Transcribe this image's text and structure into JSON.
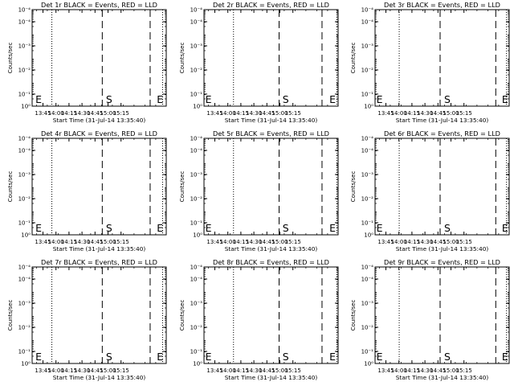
{
  "chart_data": [
    {
      "type": "line",
      "title": "Det 1r BLACK = Events, RED = LLD",
      "ylabel": "Counts/sec",
      "xlabel": "Start Time (31-Jul-14 13:35:40)",
      "y_scale": "log",
      "ylim_exp": [
        0,
        4
      ],
      "xlim_minutes": [
        0,
        100
      ],
      "x_tick_labels": [
        "13:45",
        "14:00",
        "14:15",
        "14:30",
        "14:45",
        "15:00",
        "15:15"
      ],
      "y_tick_labels": [
        "10⁰",
        "10⁻¹",
        "10⁻²",
        "10⁻³",
        "10⁻⁴",
        "10⁻⁴"
      ],
      "dotted_lines": [
        14.7,
        97.3
      ],
      "dashed_lines": [
        52.3,
        88.0
      ],
      "annotations": [
        {
          "text": "E",
          "x_minutes": 2.5
        },
        {
          "text": "S",
          "x_minutes": 55.0
        },
        {
          "text": "E",
          "x_minutes": 93.0
        }
      ],
      "series": []
    },
    {
      "type": "line",
      "title": "Det 2r BLACK = Events, RED = LLD",
      "ylabel": "Counts/sec",
      "xlabel": "Start Time (31-Jul-14 13:35:40)",
      "y_scale": "log",
      "ylim_exp": [
        0,
        4
      ],
      "xlim_minutes": [
        0,
        100
      ],
      "x_tick_labels": [
        "13:45",
        "14:00",
        "14:15",
        "14:30",
        "14:45",
        "15:00",
        "15:15"
      ],
      "y_tick_labels": [
        "10⁰",
        "10⁻¹",
        "10⁻²",
        "10⁻³",
        "10⁻⁴",
        "10⁻⁴"
      ],
      "dotted_lines": [
        22.0,
        99.0
      ],
      "dashed_lines": [
        56.0,
        88.0
      ],
      "annotations": [
        {
          "text": "E",
          "x_minutes": 1.0
        },
        {
          "text": "S",
          "x_minutes": 58.5
        },
        {
          "text": "E",
          "x_minutes": 93.5
        }
      ],
      "series": []
    },
    {
      "type": "line",
      "title": "Det 3r BLACK = Events, RED = LLD",
      "ylabel": "Counts/sec",
      "xlabel": "Start Time (31-Jul-14 13:35:40)",
      "y_scale": "log",
      "ylim_exp": [
        0,
        4
      ],
      "xlim_minutes": [
        0,
        100
      ],
      "x_tick_labels": [
        "13:45",
        "14:00",
        "14:15",
        "14:30",
        "14:45",
        "15:00",
        "15:15"
      ],
      "y_tick_labels": [
        "10⁰",
        "10⁻¹",
        "10⁻²",
        "10⁻³",
        "10⁻⁴",
        "10⁻⁴"
      ],
      "dotted_lines": [
        18.0,
        98.0
      ],
      "dashed_lines": [
        48.5,
        90.0
      ],
      "annotations": [
        {
          "text": "E",
          "x_minutes": 1.0
        },
        {
          "text": "S",
          "x_minutes": 51.5
        },
        {
          "text": "E",
          "x_minutes": 94.5
        }
      ],
      "series": []
    },
    {
      "type": "line",
      "title": "Det 4r BLACK = Events, RED = LLD",
      "ylabel": "Counts/sec",
      "xlabel": "Start Time (31-Jul-14 13:35:40)",
      "y_scale": "log",
      "ylim_exp": [
        0,
        4
      ],
      "xlim_minutes": [
        0,
        100
      ],
      "x_tick_labels": [
        "13:45",
        "14:00",
        "14:15",
        "14:30",
        "14:45",
        "15:00",
        "15:15"
      ],
      "y_tick_labels": [
        "10⁰",
        "10⁻¹",
        "10⁻²",
        "10⁻³",
        "10⁻⁴",
        "10⁻⁴"
      ],
      "dotted_lines": [
        14.7,
        97.3
      ],
      "dashed_lines": [
        52.3,
        88.0
      ],
      "annotations": [
        {
          "text": "E",
          "x_minutes": 2.5
        },
        {
          "text": "S",
          "x_minutes": 55.0
        },
        {
          "text": "E",
          "x_minutes": 93.0
        }
      ],
      "series": []
    },
    {
      "type": "line",
      "title": "Det 5r BLACK = Events, RED = LLD",
      "ylabel": "Counts/sec",
      "xlabel": "Start Time (31-Jul-14 13:35:40)",
      "y_scale": "log",
      "ylim_exp": [
        0,
        4
      ],
      "xlim_minutes": [
        0,
        100
      ],
      "x_tick_labels": [
        "13:45",
        "14:00",
        "14:15",
        "14:30",
        "14:45",
        "15:00",
        "15:15"
      ],
      "y_tick_labels": [
        "10⁰",
        "10⁻¹",
        "10⁻²",
        "10⁻³",
        "10⁻⁴",
        "10⁻⁴"
      ],
      "dotted_lines": [
        22.0,
        99.0
      ],
      "dashed_lines": [
        56.0,
        88.0
      ],
      "annotations": [
        {
          "text": "E",
          "x_minutes": 1.0
        },
        {
          "text": "S",
          "x_minutes": 58.5
        },
        {
          "text": "E",
          "x_minutes": 93.5
        }
      ],
      "series": []
    },
    {
      "type": "line",
      "title": "Det 6r BLACK = Events, RED = LLD",
      "ylabel": "Counts/sec",
      "xlabel": "Start Time (31-Jul-14 13:35:40)",
      "y_scale": "log",
      "ylim_exp": [
        0,
        4
      ],
      "xlim_minutes": [
        0,
        100
      ],
      "x_tick_labels": [
        "13:45",
        "14:00",
        "14:15",
        "14:30",
        "14:45",
        "15:00",
        "15:15"
      ],
      "y_tick_labels": [
        "10⁰",
        "10⁻¹",
        "10⁻²",
        "10⁻³",
        "10⁻⁴",
        "10⁻⁴"
      ],
      "dotted_lines": [
        18.0,
        98.0
      ],
      "dashed_lines": [
        48.5,
        90.0
      ],
      "annotations": [
        {
          "text": "E",
          "x_minutes": 1.0
        },
        {
          "text": "S",
          "x_minutes": 51.5
        },
        {
          "text": "E",
          "x_minutes": 94.5
        }
      ],
      "series": []
    },
    {
      "type": "line",
      "title": "Det 7r BLACK = Events, RED = LLD",
      "ylabel": "Counts/sec",
      "xlabel": "Start Time (31-Jul-14 13:35:40)",
      "y_scale": "log",
      "ylim_exp": [
        0,
        4
      ],
      "xlim_minutes": [
        0,
        100
      ],
      "x_tick_labels": [
        "13:45",
        "14:00",
        "14:15",
        "14:30",
        "14:45",
        "15:00",
        "15:15"
      ],
      "y_tick_labels": [
        "10⁰",
        "10⁻¹",
        "10⁻²",
        "10⁻³",
        "10⁻⁴",
        "10⁻⁴"
      ],
      "dotted_lines": [
        14.7,
        97.3
      ],
      "dashed_lines": [
        52.3,
        88.0
      ],
      "annotations": [
        {
          "text": "E",
          "x_minutes": 2.5
        },
        {
          "text": "S",
          "x_minutes": 55.0
        },
        {
          "text": "E",
          "x_minutes": 93.0
        }
      ],
      "series": []
    },
    {
      "type": "line",
      "title": "Det 8r BLACK = Events, RED = LLD",
      "ylabel": "Counts/sec",
      "xlabel": "Start Time (31-Jul-14 13:35:40)",
      "y_scale": "log",
      "ylim_exp": [
        0,
        4
      ],
      "xlim_minutes": [
        0,
        100
      ],
      "x_tick_labels": [
        "13:45",
        "14:00",
        "14:15",
        "14:30",
        "14:45",
        "15:00",
        "15:15"
      ],
      "y_tick_labels": [
        "10⁰",
        "10⁻¹",
        "10⁻²",
        "10⁻³",
        "10⁻⁴",
        "10⁻⁴"
      ],
      "dotted_lines": [
        22.0,
        99.0
      ],
      "dashed_lines": [
        56.0,
        88.0
      ],
      "annotations": [
        {
          "text": "E",
          "x_minutes": 1.0
        },
        {
          "text": "S",
          "x_minutes": 58.5
        },
        {
          "text": "E",
          "x_minutes": 93.5
        }
      ],
      "series": []
    },
    {
      "type": "line",
      "title": "Det 9r BLACK = Events, RED = LLD",
      "ylabel": "Counts/sec",
      "xlabel": "Start Time (31-Jul-14 13:35:40)",
      "y_scale": "log",
      "ylim_exp": [
        0,
        4
      ],
      "xlim_minutes": [
        0,
        100
      ],
      "x_tick_labels": [
        "13:45",
        "14:00",
        "14:15",
        "14:30",
        "14:45",
        "15:00",
        "15:15"
      ],
      "y_tick_labels": [
        "10⁰",
        "10⁻¹",
        "10⁻²",
        "10⁻³",
        "10⁻⁴",
        "10⁻⁴"
      ],
      "dotted_lines": [
        18.0,
        98.0
      ],
      "dashed_lines": [
        48.5,
        90.0
      ],
      "annotations": [
        {
          "text": "E",
          "x_minutes": 1.0
        },
        {
          "text": "S",
          "x_minutes": 51.5
        },
        {
          "text": "E",
          "x_minutes": 94.5
        }
      ],
      "series": []
    }
  ]
}
